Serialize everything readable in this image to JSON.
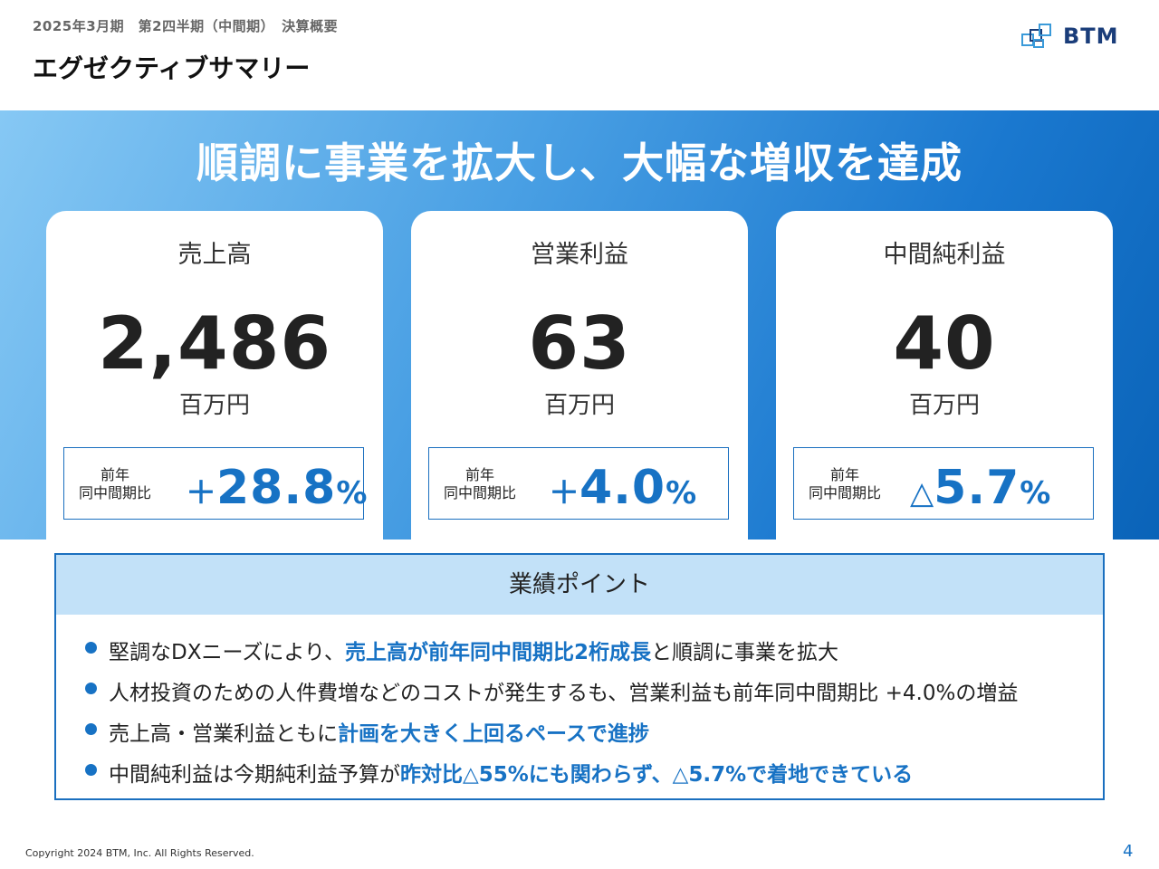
{
  "header": {
    "subtitle": "2025年3月期　第2四半期（中間期）　決算概要",
    "title": "エグゼクティブサマリー",
    "logo_text": "BTM"
  },
  "headline": "順調に事業を拡大し、大幅な増収を達成",
  "colors": {
    "accent": "#1772c4",
    "band_start": "#86c8f4",
    "band_end": "#0a63b8",
    "points_header_bg": "#c2e1f8"
  },
  "cards": [
    {
      "label": "売上高",
      "value": "2,486",
      "unit": "百万円",
      "yoy_label_line1": "前年",
      "yoy_label_line2": "同中間期比",
      "yoy_sign": "＋",
      "yoy_value": "28.8",
      "yoy_pct": "%"
    },
    {
      "label": "営業利益",
      "value": "63",
      "unit": "百万円",
      "yoy_label_line1": "前年",
      "yoy_label_line2": "同中間期比",
      "yoy_sign": "＋",
      "yoy_value": "4.0",
      "yoy_pct": "%"
    },
    {
      "label": "中間純利益",
      "value": "40",
      "unit": "百万円",
      "yoy_label_line1": "前年",
      "yoy_label_line2": "同中間期比",
      "yoy_sign": "△",
      "yoy_value": "5.7",
      "yoy_pct": "%"
    }
  ],
  "points": {
    "title": "業績ポイント",
    "items": [
      {
        "text_a": "堅調なDXニーズにより、",
        "highlight": "売上高が前年同中間期比2桁成長",
        "text_b": "と順調に事業を拡大"
      },
      {
        "text_a": "人材投資のための人件費増などのコストが発生するも、営業利益も前年同中間期比 +4.0%の増益",
        "highlight": "",
        "text_b": ""
      },
      {
        "text_a": "売上高・営業利益ともに",
        "highlight": "計画を大きく上回るペースで進捗",
        "text_b": ""
      },
      {
        "text_a": "中間純利益は今期純利益予算が",
        "highlight": "昨対比△55%にも関わらず、△5.7%で着地できている",
        "text_b": ""
      }
    ]
  },
  "footer": {
    "copyright": "Copyright 2024 BTM, Inc. All Rights Reserved.",
    "page_number": "4"
  }
}
